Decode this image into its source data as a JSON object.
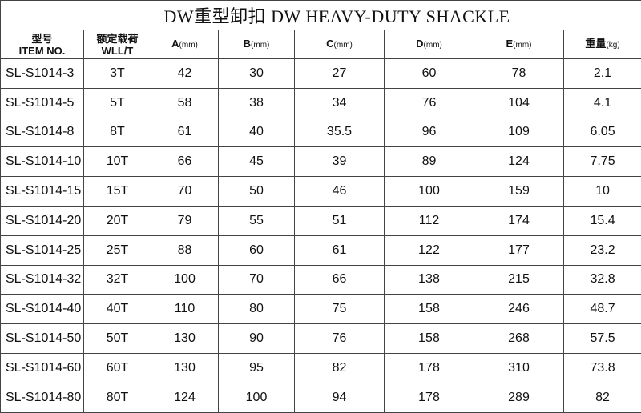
{
  "title": "DW重型卸扣  DW HEAVY-DUTY SHACKLE",
  "headers": [
    {
      "l1": "型号",
      "l2": "ITEM NO."
    },
    {
      "l1": "额定载荷",
      "l2": "WLL/T"
    },
    {
      "main": "A",
      "unit": "(mm)"
    },
    {
      "main": "B",
      "unit": "(mm)"
    },
    {
      "main": "C",
      "unit": "(mm)"
    },
    {
      "main": "D",
      "unit": "(mm)"
    },
    {
      "main": "E",
      "unit": "(mm)"
    },
    {
      "main": "重量",
      "unit": "(kg)"
    }
  ],
  "rows": [
    [
      "SL-S1014-3",
      "3T",
      "42",
      "30",
      "27",
      "60",
      "78",
      "2.1"
    ],
    [
      "SL-S1014-5",
      "5T",
      "58",
      "38",
      "34",
      "76",
      "104",
      "4.1"
    ],
    [
      "SL-S1014-8",
      "8T",
      "61",
      "40",
      "35.5",
      "96",
      "109",
      "6.05"
    ],
    [
      "SL-S1014-10",
      "10T",
      "66",
      "45",
      "39",
      "89",
      "124",
      "7.75"
    ],
    [
      "SL-S1014-15",
      "15T",
      "70",
      "50",
      "46",
      "100",
      "159",
      "10"
    ],
    [
      "SL-S1014-20",
      "20T",
      "79",
      "55",
      "51",
      "112",
      "174",
      "15.4"
    ],
    [
      "SL-S1014-25",
      "25T",
      "88",
      "60",
      "61",
      "122",
      "177",
      "23.2"
    ],
    [
      "SL-S1014-32",
      "32T",
      "100",
      "70",
      "66",
      "138",
      "215",
      "32.8"
    ],
    [
      "SL-S1014-40",
      "40T",
      "110",
      "80",
      "75",
      "158",
      "246",
      "48.7"
    ],
    [
      "SL-S1014-50",
      "50T",
      "130",
      "90",
      "76",
      "158",
      "268",
      "57.5"
    ],
    [
      "SL-S1014-60",
      "60T",
      "130",
      "95",
      "82",
      "178",
      "310",
      "73.8"
    ],
    [
      "SL-S1014-80",
      "80T",
      "124",
      "100",
      "94",
      "178",
      "289",
      "82"
    ]
  ]
}
